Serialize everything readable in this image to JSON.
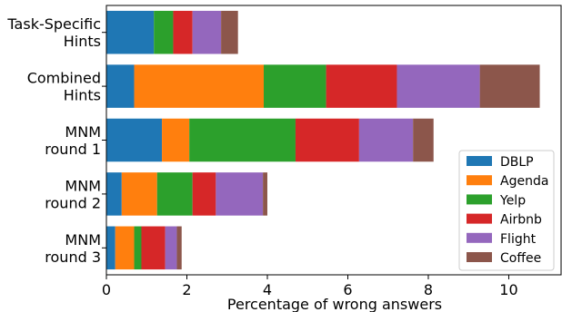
{
  "chart_data": {
    "type": "bar",
    "orientation": "horizontal",
    "stacked": true,
    "categories": [
      [
        "Task-Specific",
        "Hints"
      ],
      [
        "Combined",
        "Hints"
      ],
      [
        "MNM",
        "round 1"
      ],
      [
        "MNM",
        "round 2"
      ],
      [
        "MNM",
        "round 3"
      ]
    ],
    "series": [
      {
        "name": "DBLP",
        "color": "#1f77b4",
        "values": [
          1.18,
          0.69,
          1.38,
          0.38,
          0.22
        ]
      },
      {
        "name": "Agenda",
        "color": "#ff7f0e",
        "values": [
          0.0,
          3.22,
          0.68,
          0.88,
          0.47
        ]
      },
      {
        "name": "Yelp",
        "color": "#2ca02c",
        "values": [
          0.48,
          1.55,
          2.64,
          0.88,
          0.18
        ]
      },
      {
        "name": "Airbnb",
        "color": "#d62728",
        "values": [
          0.48,
          1.76,
          1.58,
          0.58,
          0.59
        ]
      },
      {
        "name": "Flight",
        "color": "#9467bd",
        "values": [
          0.71,
          2.06,
          1.34,
          1.17,
          0.29
        ]
      },
      {
        "name": "Coffee",
        "color": "#8c564b",
        "values": [
          0.42,
          1.49,
          0.51,
          0.11,
          0.12
        ]
      }
    ],
    "xlabel": "Percentage of wrong answers",
    "ylabel": "",
    "title": "",
    "xlim": [
      0,
      11.3
    ],
    "xticks": [
      "0",
      "2",
      "4",
      "6",
      "8",
      "10"
    ],
    "grid": false,
    "legend_position": "lower-right"
  }
}
